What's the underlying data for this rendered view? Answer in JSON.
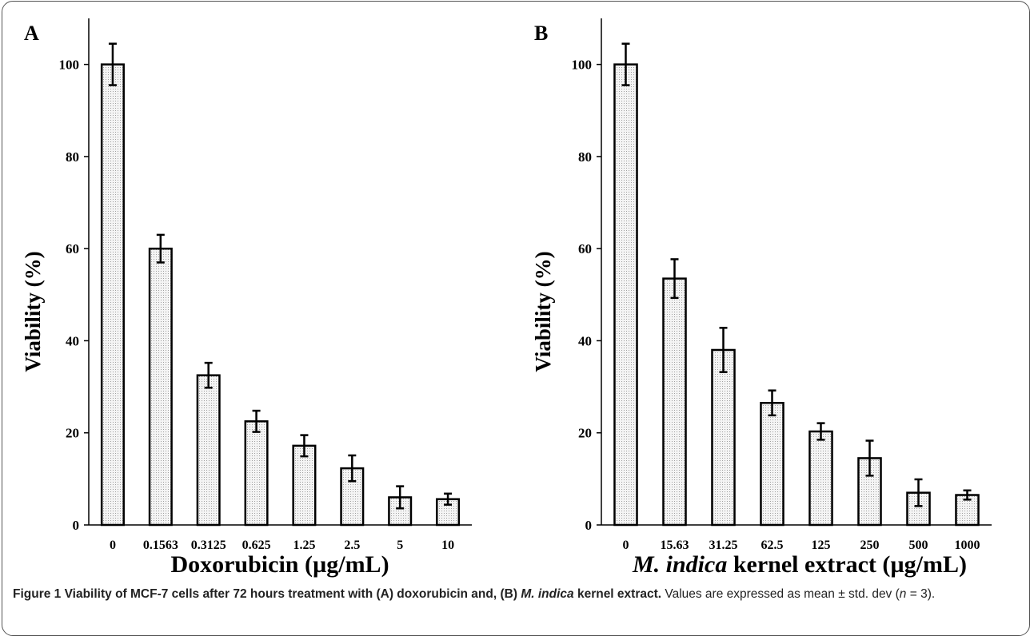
{
  "chart_data": [
    {
      "type": "bar",
      "panel_label": "A",
      "categories": [
        "0",
        "0.1563",
        "0.3125",
        "0.625",
        "1.25",
        "2.5",
        "5",
        "10"
      ],
      "values": [
        100,
        60,
        32.5,
        22.5,
        17.2,
        12.3,
        6,
        5.6
      ],
      "errors": [
        4.5,
        3,
        2.7,
        2.3,
        2.3,
        2.8,
        2.4,
        1.2
      ],
      "xlabel": "Doxorubicin (µg/mL)",
      "xlabel_italic": "",
      "ylabel": "Viability (%)",
      "ylim": [
        0,
        110
      ],
      "yticks": [
        0,
        20,
        40,
        60,
        80,
        100
      ],
      "grid": false,
      "bar_fill": "dotted-light-gray"
    },
    {
      "type": "bar",
      "panel_label": "B",
      "categories": [
        "0",
        "15.63",
        "31.25",
        "62.5",
        "125",
        "250",
        "500",
        "1000"
      ],
      "values": [
        100,
        53.5,
        38,
        26.5,
        20.3,
        14.5,
        7,
        6.5
      ],
      "errors": [
        4.5,
        4.2,
        4.8,
        2.7,
        1.8,
        3.8,
        2.9,
        1
      ],
      "xlabel": " kernel extract (µg/mL)",
      "xlabel_italic": "M. indica",
      "ylabel": "Viability (%)",
      "ylim": [
        0,
        110
      ],
      "yticks": [
        0,
        20,
        40,
        60,
        80,
        100
      ],
      "grid": false,
      "bar_fill": "dotted-light-gray"
    }
  ],
  "caption": {
    "figure_label": "Figure 1",
    "bold_part1": " Viability of MCF-7 cells after 72 hours treatment with (A) doxorubicin and, (B) ",
    "bold_italic": "M. indica",
    "bold_part2": " kernel extract.",
    "normal_part1": " Values are expressed as mean ± std. dev (",
    "normal_italic": "n",
    "normal_part2": " = 3)."
  },
  "colors": {
    "bar_stroke": "#000000",
    "bar_fill": "#f2f2f2",
    "dots": "#9a9a9a",
    "frame": "#555555"
  }
}
